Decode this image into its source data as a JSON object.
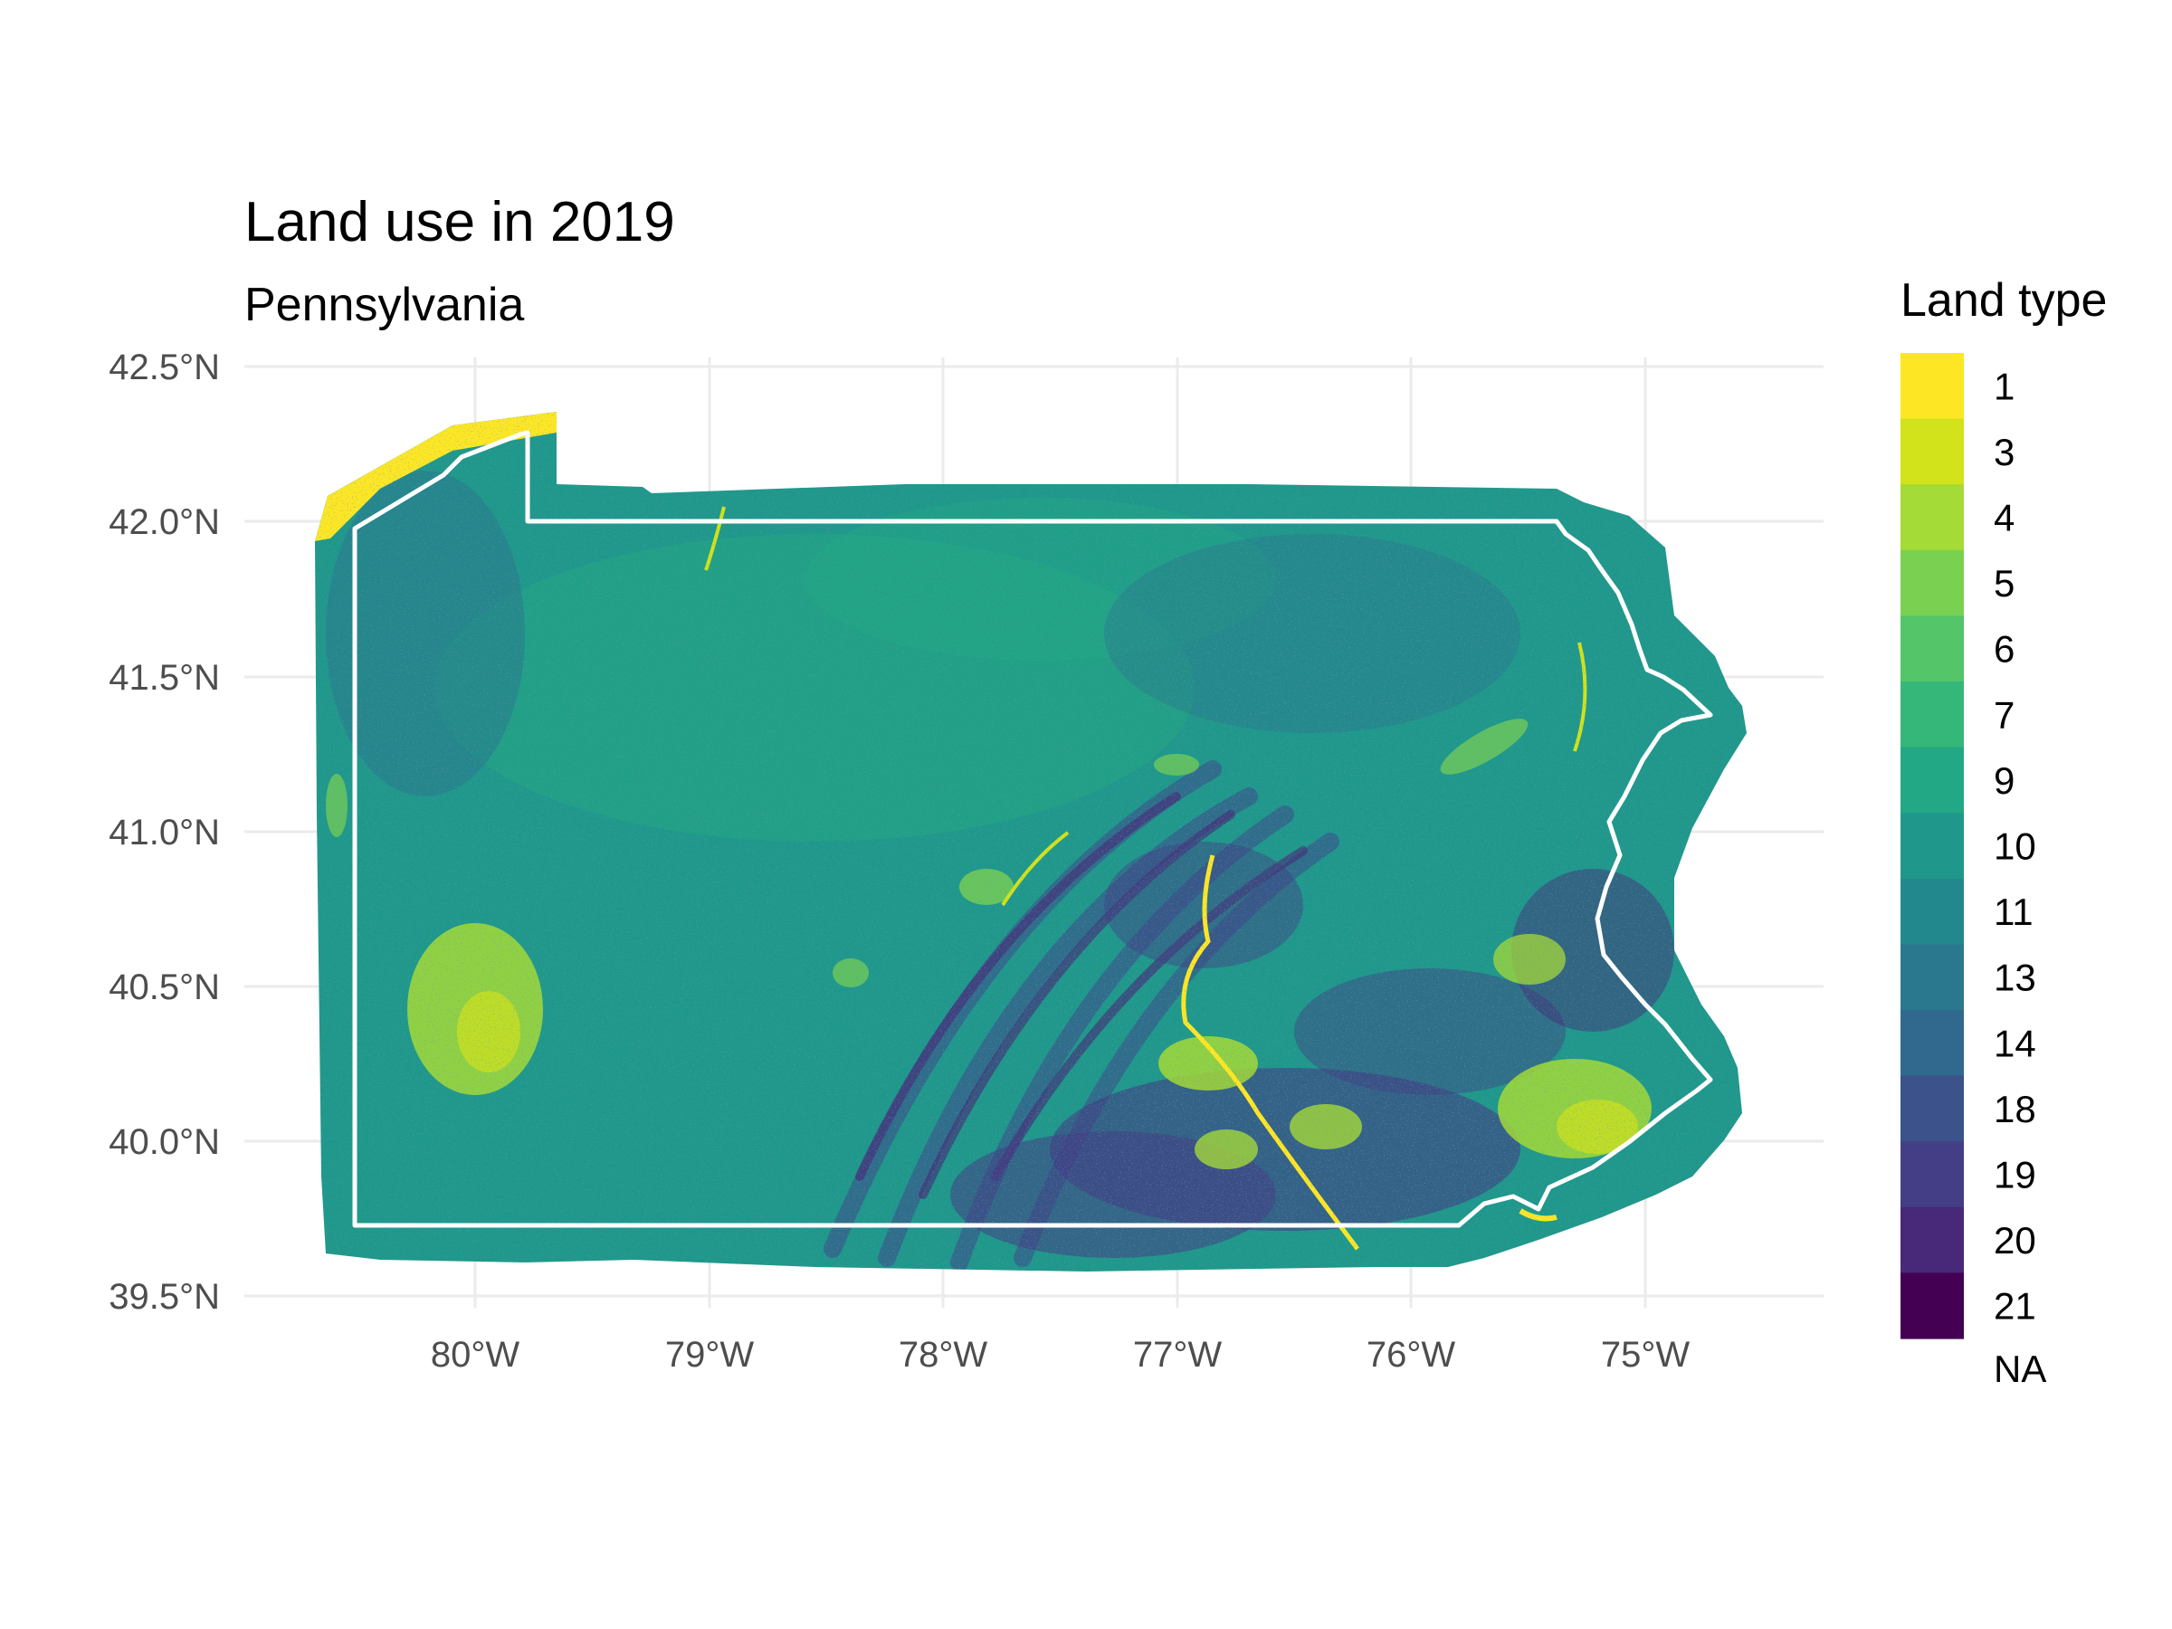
{
  "title": "Land use in 2019",
  "subtitle": "Pennsylvania",
  "axes": {
    "x_ticks": [
      "80°W",
      "79°W",
      "78°W",
      "77°W",
      "76°W",
      "75°W"
    ],
    "y_ticks": [
      "42.5°N",
      "42.0°N",
      "41.5°N",
      "41.0°N",
      "40.5°N",
      "40.0°N",
      "39.5°N"
    ]
  },
  "legend": {
    "title": "Land type",
    "na_label": "NA",
    "classes": [
      {
        "label": "1",
        "color": "#FDE725"
      },
      {
        "label": "3",
        "color": "#D2E21B"
      },
      {
        "label": "4",
        "color": "#A5DB36"
      },
      {
        "label": "5",
        "color": "#7AD151"
      },
      {
        "label": "6",
        "color": "#54C568"
      },
      {
        "label": "7",
        "color": "#35B779"
      },
      {
        "label": "9",
        "color": "#22A884"
      },
      {
        "label": "10",
        "color": "#1F988B"
      },
      {
        "label": "11",
        "color": "#23888E"
      },
      {
        "label": "13",
        "color": "#2A788E"
      },
      {
        "label": "14",
        "color": "#31688E"
      },
      {
        "label": "18",
        "color": "#3B528B"
      },
      {
        "label": "19",
        "color": "#433E85"
      },
      {
        "label": "20",
        "color": "#482878"
      },
      {
        "label": "21",
        "color": "#440154"
      }
    ]
  },
  "map": {
    "region": "Pennsylvania",
    "boundary_color": "#ffffff",
    "lon_range": [
      -80.9,
      -74.3
    ],
    "lat_range": [
      39.5,
      42.5
    ],
    "base_color": "#1F988B"
  }
}
